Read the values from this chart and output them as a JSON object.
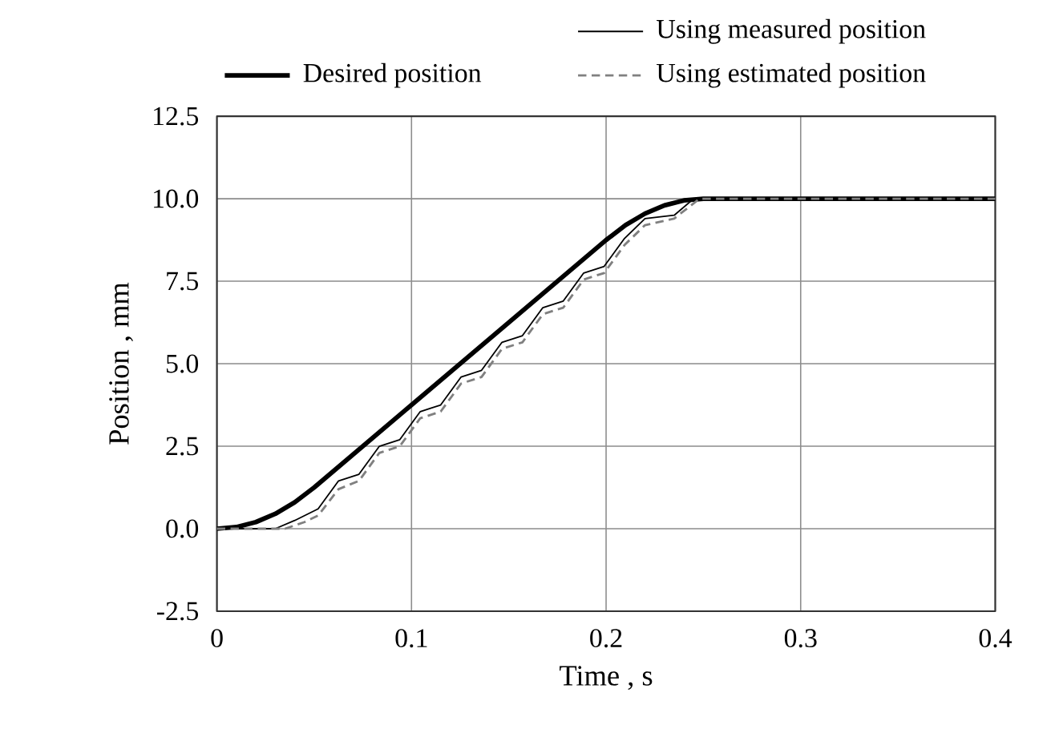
{
  "chart_data": {
    "type": "line",
    "xlabel": "Time , s",
    "ylabel": "Position , mm",
    "xlim": [
      0,
      0.4
    ],
    "ylim": [
      -2.5,
      12.5
    ],
    "xticks": [
      0,
      0.1,
      0.2,
      0.3,
      0.4
    ],
    "yticks": [
      {
        "value": -2.5,
        "label": "-2.5"
      },
      {
        "value": 0,
        "label": "0.0"
      },
      {
        "value": 2.5,
        "label": "2.5"
      },
      {
        "value": 5,
        "label": "5.0"
      },
      {
        "value": 7.5,
        "label": "7.5"
      },
      {
        "value": 10,
        "label": "10.0"
      },
      {
        "value": 12.5,
        "label": "12.5"
      }
    ],
    "grid": true,
    "legend": "top right",
    "marker": "none",
    "series": [
      {
        "name": "Desired position",
        "color": "#000000",
        "line_style": "solid",
        "x": [
          0,
          0.01,
          0.02,
          0.03,
          0.04,
          0.05,
          0.1,
          0.15,
          0.2,
          0.21,
          0.22,
          0.23,
          0.24,
          0.25,
          0.4
        ],
        "values": [
          0,
          0.05,
          0.2,
          0.45,
          0.8,
          1.25,
          3.75,
          6.25,
          8.75,
          9.2,
          9.55,
          9.8,
          9.95,
          10,
          10
        ]
      },
      {
        "name": "Using measured position",
        "color": "#000000",
        "line_style": "solid",
        "x": [
          0,
          0.03,
          0.04,
          0.052,
          0.0625,
          0.073,
          0.0835,
          0.094,
          0.1045,
          0.115,
          0.1255,
          0.136,
          0.1465,
          0.157,
          0.1675,
          0.178,
          0.1885,
          0.199,
          0.2095,
          0.22,
          0.235,
          0.245,
          0.4
        ],
        "values": [
          0,
          0,
          0.25,
          0.6,
          1.45,
          1.65,
          2.5,
          2.7,
          3.55,
          3.75,
          4.6,
          4.8,
          5.65,
          5.85,
          6.7,
          6.9,
          7.75,
          7.95,
          8.8,
          9.4,
          9.5,
          10,
          10
        ]
      },
      {
        "name": "Using estimated position",
        "color": "#808080",
        "line_style": "dashed",
        "x": [
          0,
          0.035,
          0.045,
          0.052,
          0.0625,
          0.073,
          0.0835,
          0.094,
          0.1045,
          0.115,
          0.1255,
          0.136,
          0.1465,
          0.157,
          0.1675,
          0.178,
          0.1885,
          0.199,
          0.2095,
          0.22,
          0.235,
          0.248,
          0.4
        ],
        "values": [
          0,
          0,
          0.2,
          0.4,
          1.2,
          1.45,
          2.3,
          2.5,
          3.35,
          3.55,
          4.4,
          4.6,
          5.45,
          5.65,
          6.5,
          6.7,
          7.55,
          7.75,
          8.6,
          9.2,
          9.4,
          10,
          10
        ]
      }
    ]
  }
}
